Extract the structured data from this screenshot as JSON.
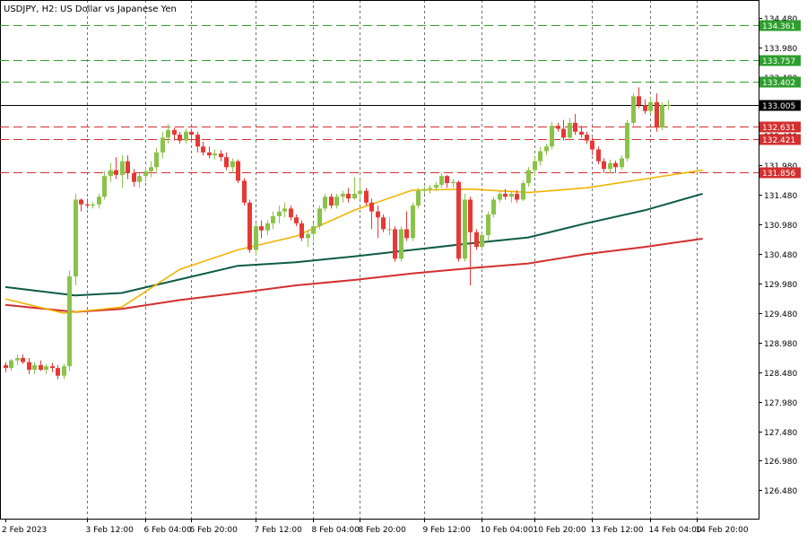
{
  "title": "USDJPY, H2:  US Dollar vs Japanese Yen",
  "colors": {
    "background": "#ffffff",
    "bull": "#8bc34a",
    "bear": "#e53935",
    "grid": "#000000",
    "ma_fast": "#f0b400",
    "ma_mid": "#0d5c46",
    "ma_slow": "#d32f2f",
    "level_green": "#2e9e2e",
    "level_red": "#d32f2f",
    "current": "#000000"
  },
  "chart_data": {
    "type": "candlestick",
    "title": "USDJPY, H2:  US Dollar vs Japanese Yen",
    "ylim": [
      126.0,
      134.78
    ],
    "y_ticks": [
      126.48,
      126.98,
      127.48,
      127.98,
      128.48,
      128.98,
      129.48,
      129.98,
      130.48,
      130.98,
      131.48,
      131.98,
      132.48,
      132.98,
      133.48,
      133.98,
      134.48
    ],
    "x_labels": [
      {
        "bar": 0,
        "label": "2 Feb 2023"
      },
      {
        "bar": 14,
        "label": "3 Feb 12:00"
      },
      {
        "bar": 24,
        "label": "6 Feb 04:00"
      },
      {
        "bar": 32,
        "label": "6 Feb 20:00"
      },
      {
        "bar": 43,
        "label": "7 Feb 12:00"
      },
      {
        "bar": 53,
        "label": "8 Feb 04:00"
      },
      {
        "bar": 61,
        "label": "8 Feb 20:00"
      },
      {
        "bar": 72,
        "label": "9 Feb 12:00"
      },
      {
        "bar": 82,
        "label": "10 Feb 04:00"
      },
      {
        "bar": 91,
        "label": "10 Feb 20:00"
      },
      {
        "bar": 101,
        "label": "13 Feb 12:00"
      },
      {
        "bar": 111,
        "label": "14 Feb 04:00"
      },
      {
        "bar": 119,
        "label": "14 Feb 20:00"
      }
    ],
    "candles": [
      [
        128.6,
        128.65,
        128.48,
        128.55
      ],
      [
        128.55,
        128.7,
        128.5,
        128.68
      ],
      [
        128.68,
        128.78,
        128.6,
        128.72
      ],
      [
        128.72,
        128.78,
        128.62,
        128.65
      ],
      [
        128.65,
        128.72,
        128.45,
        128.52
      ],
      [
        128.52,
        128.65,
        128.45,
        128.6
      ],
      [
        128.6,
        128.68,
        128.5,
        128.52
      ],
      [
        128.52,
        128.62,
        128.45,
        128.58
      ],
      [
        128.58,
        128.64,
        128.48,
        128.55
      ],
      [
        128.55,
        128.6,
        128.36,
        128.42
      ],
      [
        128.42,
        128.62,
        128.36,
        128.58
      ],
      [
        128.58,
        130.2,
        128.5,
        130.1
      ],
      [
        130.1,
        131.5,
        129.95,
        131.4
      ],
      [
        131.4,
        131.42,
        131.2,
        131.32
      ],
      [
        131.32,
        131.42,
        131.25,
        131.3
      ],
      [
        131.3,
        131.36,
        131.25,
        131.32
      ],
      [
        131.32,
        131.5,
        131.25,
        131.45
      ],
      [
        131.45,
        131.88,
        131.4,
        131.8
      ],
      [
        131.8,
        132.02,
        131.7,
        131.9
      ],
      [
        131.9,
        132.12,
        131.75,
        131.82
      ],
      [
        131.82,
        132.15,
        131.6,
        132.05
      ],
      [
        132.05,
        132.15,
        131.75,
        131.85
      ],
      [
        131.85,
        131.92,
        131.62,
        131.7
      ],
      [
        131.7,
        131.85,
        131.6,
        131.8
      ],
      [
        131.8,
        131.95,
        131.7,
        131.88
      ],
      [
        131.88,
        132.05,
        131.78,
        131.95
      ],
      [
        131.95,
        132.28,
        131.88,
        132.2
      ],
      [
        132.2,
        132.55,
        132.1,
        132.45
      ],
      [
        132.45,
        132.68,
        132.35,
        132.58
      ],
      [
        132.58,
        132.62,
        132.4,
        132.5
      ],
      [
        132.5,
        132.55,
        132.35,
        132.4
      ],
      [
        132.4,
        132.6,
        132.35,
        132.55
      ],
      [
        132.55,
        132.6,
        132.38,
        132.5
      ],
      [
        132.5,
        132.55,
        132.2,
        132.3
      ],
      [
        132.3,
        132.38,
        132.15,
        132.2
      ],
      [
        132.2,
        132.3,
        132.1,
        132.15
      ],
      [
        132.15,
        132.25,
        132.08,
        132.18
      ],
      [
        132.18,
        132.24,
        132.05,
        132.12
      ],
      [
        132.12,
        132.2,
        131.9,
        131.95
      ],
      [
        131.95,
        132.1,
        131.85,
        132.05
      ],
      [
        132.05,
        132.08,
        131.68,
        131.72
      ],
      [
        131.72,
        131.76,
        131.3,
        131.35
      ],
      [
        131.35,
        131.4,
        130.5,
        130.55
      ],
      [
        130.55,
        131.0,
        130.45,
        130.95
      ],
      [
        130.95,
        131.05,
        130.75,
        130.88
      ],
      [
        130.88,
        131.05,
        130.8,
        131.0
      ],
      [
        131.0,
        131.2,
        130.9,
        131.12
      ],
      [
        131.12,
        131.3,
        131.0,
        131.2
      ],
      [
        131.2,
        131.35,
        131.1,
        131.25
      ],
      [
        131.25,
        131.3,
        131.05,
        131.1
      ],
      [
        131.1,
        131.15,
        130.95,
        131.0
      ],
      [
        131.0,
        131.05,
        130.7,
        130.75
      ],
      [
        130.75,
        130.88,
        130.6,
        130.82
      ],
      [
        130.82,
        131.0,
        130.7,
        130.95
      ],
      [
        130.95,
        131.3,
        130.9,
        131.25
      ],
      [
        131.25,
        131.5,
        131.2,
        131.45
      ],
      [
        131.45,
        131.5,
        131.25,
        131.3
      ],
      [
        131.3,
        131.5,
        131.25,
        131.45
      ],
      [
        131.45,
        131.55,
        131.35,
        131.5
      ],
      [
        131.5,
        131.6,
        131.35,
        131.42
      ],
      [
        131.42,
        131.78,
        131.4,
        131.5
      ],
      [
        131.5,
        131.75,
        131.4,
        131.55
      ],
      [
        131.55,
        131.6,
        131.3,
        131.35
      ],
      [
        131.35,
        131.42,
        130.9,
        131.2
      ],
      [
        131.2,
        131.3,
        130.75,
        131.1
      ],
      [
        131.1,
        131.15,
        130.85,
        130.9
      ],
      [
        130.9,
        131.1,
        130.8,
        130.9
      ],
      [
        130.9,
        130.95,
        130.35,
        130.4
      ],
      [
        130.4,
        130.95,
        130.35,
        130.9
      ],
      [
        130.9,
        131.2,
        130.7,
        130.75
      ],
      [
        130.75,
        131.35,
        130.7,
        131.3
      ],
      [
        131.3,
        131.6,
        131.25,
        131.55
      ],
      [
        131.55,
        131.62,
        131.5,
        131.58
      ],
      [
        131.58,
        131.65,
        131.5,
        131.6
      ],
      [
        131.6,
        131.7,
        131.55,
        131.65
      ],
      [
        131.65,
        131.85,
        131.6,
        131.8
      ],
      [
        131.8,
        131.82,
        131.6,
        131.68
      ],
      [
        131.68,
        131.75,
        131.6,
        131.7
      ],
      [
        131.7,
        131.72,
        130.35,
        130.4
      ],
      [
        130.4,
        131.5,
        130.35,
        131.4
      ],
      [
        131.4,
        131.45,
        129.95,
        130.85
      ],
      [
        130.85,
        130.9,
        130.55,
        130.6
      ],
      [
        130.6,
        130.85,
        130.55,
        130.8
      ],
      [
        130.8,
        131.2,
        130.7,
        131.15
      ],
      [
        131.15,
        131.45,
        131.1,
        131.4
      ],
      [
        131.4,
        131.55,
        131.35,
        131.5
      ],
      [
        131.5,
        131.58,
        131.4,
        131.45
      ],
      [
        131.45,
        131.55,
        131.35,
        131.5
      ],
      [
        131.5,
        131.56,
        131.35,
        131.4
      ],
      [
        131.4,
        131.72,
        131.38,
        131.68
      ],
      [
        131.68,
        131.95,
        131.62,
        131.9
      ],
      [
        131.9,
        132.12,
        131.8,
        132.05
      ],
      [
        132.05,
        132.3,
        131.98,
        132.22
      ],
      [
        132.22,
        132.35,
        132.15,
        132.3
      ],
      [
        132.3,
        132.72,
        132.25,
        132.65
      ],
      [
        132.65,
        132.7,
        132.55,
        132.6
      ],
      [
        132.6,
        132.75,
        132.4,
        132.45
      ],
      [
        132.45,
        132.78,
        132.4,
        132.7
      ],
      [
        132.7,
        132.85,
        132.5,
        132.55
      ],
      [
        132.55,
        132.65,
        132.45,
        132.5
      ],
      [
        132.5,
        132.55,
        132.35,
        132.4
      ],
      [
        132.4,
        132.45,
        132.15,
        132.25
      ],
      [
        132.25,
        132.3,
        132.0,
        132.05
      ],
      [
        132.05,
        132.1,
        131.85,
        131.92
      ],
      [
        131.92,
        132.08,
        131.85,
        132.02
      ],
      [
        132.02,
        132.06,
        131.85,
        131.95
      ],
      [
        131.95,
        132.15,
        131.9,
        132.1
      ],
      [
        132.1,
        132.75,
        132.05,
        132.7
      ],
      [
        132.7,
        133.2,
        132.65,
        133.15
      ],
      [
        133.15,
        133.3,
        132.95,
        133.0
      ],
      [
        133.0,
        133.1,
        132.85,
        132.9
      ],
      [
        132.9,
        133.12,
        132.85,
        133.05
      ],
      [
        133.05,
        133.2,
        132.55,
        132.62
      ],
      [
        132.62,
        133.05,
        132.58,
        133.0
      ],
      [
        133.0,
        133.08,
        132.92,
        133.005
      ]
    ],
    "ma_fast": [
      [
        0,
        129.72
      ],
      [
        10,
        129.48
      ],
      [
        20,
        129.58
      ],
      [
        30,
        130.22
      ],
      [
        40,
        130.55
      ],
      [
        50,
        130.78
      ],
      [
        60,
        131.22
      ],
      [
        70,
        131.56
      ],
      [
        80,
        131.58
      ],
      [
        90,
        131.52
      ],
      [
        100,
        131.6
      ],
      [
        110,
        131.75
      ],
      [
        120,
        131.9
      ]
    ],
    "ma_mid": [
      [
        0,
        129.92
      ],
      [
        12,
        129.78
      ],
      [
        20,
        129.82
      ],
      [
        30,
        130.05
      ],
      [
        40,
        130.28
      ],
      [
        50,
        130.34
      ],
      [
        60,
        130.44
      ],
      [
        70,
        130.55
      ],
      [
        80,
        130.66
      ],
      [
        90,
        130.76
      ],
      [
        100,
        131.0
      ],
      [
        110,
        131.22
      ],
      [
        120,
        131.5
      ]
    ],
    "ma_slow": [
      [
        0,
        129.62
      ],
      [
        12,
        129.5
      ],
      [
        20,
        129.55
      ],
      [
        30,
        129.7
      ],
      [
        40,
        129.82
      ],
      [
        50,
        129.95
      ],
      [
        60,
        130.04
      ],
      [
        70,
        130.15
      ],
      [
        80,
        130.24
      ],
      [
        90,
        130.32
      ],
      [
        100,
        130.48
      ],
      [
        110,
        130.6
      ],
      [
        120,
        130.74
      ]
    ],
    "levels": [
      {
        "value": 134.361,
        "label": "134.361",
        "color": "green"
      },
      {
        "value": 133.757,
        "label": "133.757",
        "color": "green"
      },
      {
        "value": 133.402,
        "label": "133.402",
        "color": "green"
      },
      {
        "value": 132.631,
        "label": "132.631",
        "color": "red"
      },
      {
        "value": 132.421,
        "label": "132.421",
        "color": "red"
      },
      {
        "value": 131.856,
        "label": "131.856",
        "color": "red"
      }
    ],
    "current_price": {
      "value": 133.005,
      "label": "133.005"
    },
    "vertical_grid_bars": [
      14,
      24,
      32,
      43,
      53,
      61,
      72,
      82,
      91,
      101,
      111,
      119
    ]
  }
}
